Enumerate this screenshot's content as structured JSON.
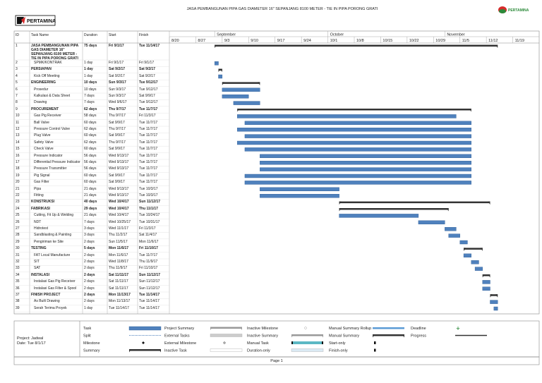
{
  "header": {
    "logo": "PERTAMINA",
    "title": "JASA PEMBANGUNAN PIPA GAS DIAMETER 16\" SEPANJANG 8100 METER - TIE IN PIPA PORONG GRATI",
    "logo_right": "PERTAMINA"
  },
  "chart_data": {
    "type": "gantt",
    "columns": [
      "ID",
      "Task Name",
      "Duration",
      "Start",
      "Finish"
    ],
    "months": [
      "September",
      "October",
      "November"
    ],
    "weeks": [
      "8/20",
      "8/27",
      "9/3",
      "9/10",
      "9/17",
      "9/24",
      "10/1",
      "10/8",
      "10/15",
      "10/22",
      "10/29",
      "11/5",
      "11/12",
      "11/19"
    ],
    "tasks": [
      {
        "id": 1,
        "name": "JASA PEMBANGUNAN PIPA GAS DIAMETER 16\" SEPANJANG 8100 METER - TIE IN PIPA PORONG GRATI",
        "duration": "75 days",
        "start": "Fri 9/1/17",
        "finish": "Tue 11/14/17",
        "summary": true
      },
      {
        "id": 2,
        "name": "SPMK/KONTRAK",
        "duration": "1 day",
        "start": "Fri 9/1/17",
        "finish": "Fri 9/1/17",
        "summary": false
      },
      {
        "id": 3,
        "name": "PERSIAPAN",
        "duration": "1 day",
        "start": "Sat 9/2/17",
        "finish": "Sat 9/2/17",
        "summary": true
      },
      {
        "id": 4,
        "name": "Kick Off Meeting",
        "duration": "1 day",
        "start": "Sat 9/2/17",
        "finish": "Sat 9/2/17",
        "summary": false
      },
      {
        "id": 5,
        "name": "ENGINEERING",
        "duration": "10 days",
        "start": "Sun 9/3/17",
        "finish": "Tue 9/12/17",
        "summary": true
      },
      {
        "id": 6,
        "name": "Prosedur",
        "duration": "10 days",
        "start": "Sun 9/3/17",
        "finish": "Tue 9/12/17",
        "summary": false
      },
      {
        "id": 7,
        "name": "Kalkulasi & Data Sheet",
        "duration": "7 days",
        "start": "Sun 9/3/17",
        "finish": "Sat 9/9/17",
        "summary": false
      },
      {
        "id": 8,
        "name": "Drawing",
        "duration": "7 days",
        "start": "Wed 9/6/17",
        "finish": "Tue 9/12/17",
        "summary": false
      },
      {
        "id": 9,
        "name": "PROCUREMENT",
        "duration": "62 days",
        "start": "Thu 9/7/17",
        "finish": "Tue 11/7/17",
        "summary": true
      },
      {
        "id": 10,
        "name": "Gas Pig Receiver",
        "duration": "58 days",
        "start": "Thu 9/7/17",
        "finish": "Fri 11/3/17",
        "summary": false
      },
      {
        "id": 11,
        "name": "Ball Valve",
        "duration": "60 days",
        "start": "Sat 9/9/17",
        "finish": "Tue 11/7/17",
        "summary": false
      },
      {
        "id": 12,
        "name": "Pressure Control Valve",
        "duration": "62 days",
        "start": "Thu 9/7/17",
        "finish": "Tue 11/7/17",
        "summary": false
      },
      {
        "id": 13,
        "name": "Plug Valve",
        "duration": "60 days",
        "start": "Sat 9/9/17",
        "finish": "Tue 11/7/17",
        "summary": false
      },
      {
        "id": 14,
        "name": "Safety Valve",
        "duration": "62 days",
        "start": "Thu 9/7/17",
        "finish": "Tue 11/7/17",
        "summary": false
      },
      {
        "id": 15,
        "name": "Check Valve",
        "duration": "60 days",
        "start": "Sat 9/9/17",
        "finish": "Tue 11/7/17",
        "summary": false
      },
      {
        "id": 16,
        "name": "Pressure Indicator",
        "duration": "56 days",
        "start": "Wed 9/13/17",
        "finish": "Tue 11/7/17",
        "summary": false
      },
      {
        "id": 17,
        "name": "Differential Pressure Indicator",
        "duration": "56 days",
        "start": "Wed 9/13/17",
        "finish": "Tue 11/7/17",
        "summary": false
      },
      {
        "id": 18,
        "name": "Pressure Transmitter",
        "duration": "56 days",
        "start": "Wed 9/13/17",
        "finish": "Tue 11/7/17",
        "summary": false
      },
      {
        "id": 19,
        "name": "Pig Signal",
        "duration": "60 days",
        "start": "Sat 9/9/17",
        "finish": "Tue 11/7/17",
        "summary": false
      },
      {
        "id": 20,
        "name": "Gas Filter",
        "duration": "60 days",
        "start": "Sat 9/9/17",
        "finish": "Tue 11/7/17",
        "summary": false
      },
      {
        "id": 21,
        "name": "Pipa",
        "duration": "21 days",
        "start": "Wed 9/13/17",
        "finish": "Tue 10/3/17",
        "summary": false
      },
      {
        "id": 22,
        "name": "Fitting",
        "duration": "21 days",
        "start": "Wed 9/13/17",
        "finish": "Tue 10/3/17",
        "summary": false
      },
      {
        "id": 23,
        "name": "KONSTRUKSI",
        "duration": "40 days",
        "start": "Wed 10/4/17",
        "finish": "Sun 11/12/17",
        "summary": true
      },
      {
        "id": 24,
        "name": "FABRIKASI",
        "duration": "29 days",
        "start": "Wed 10/4/17",
        "finish": "Thu 11/1/17",
        "summary": true
      },
      {
        "id": 25,
        "name": "Cutting, Fit Up & Welding",
        "duration": "21 days",
        "start": "Wed 10/4/17",
        "finish": "Tue 10/24/17",
        "summary": false
      },
      {
        "id": 26,
        "name": "NDT",
        "duration": "7 days",
        "start": "Wed 10/25/17",
        "finish": "Tue 10/31/17",
        "summary": false
      },
      {
        "id": 27,
        "name": "Hidrotest",
        "duration": "3 days",
        "start": "Wed 11/1/17",
        "finish": "Fri 11/3/17",
        "summary": false
      },
      {
        "id": 28,
        "name": "Sandblasting & Painting",
        "duration": "3 days",
        "start": "Thu 11/2/17",
        "finish": "Sat 11/4/17",
        "summary": false
      },
      {
        "id": 29,
        "name": "Pengiriman ke Site",
        "duration": "2 days",
        "start": "Sun 11/5/17",
        "finish": "Mon 11/6/17",
        "summary": false
      },
      {
        "id": 30,
        "name": "TESTING",
        "duration": "5 days",
        "start": "Mon 11/6/17",
        "finish": "Fri 11/10/17",
        "summary": true
      },
      {
        "id": 31,
        "name": "FAT Local Manufacture",
        "duration": "2 days",
        "start": "Mon 11/6/17",
        "finish": "Tue 11/7/17",
        "summary": false
      },
      {
        "id": 32,
        "name": "SIT",
        "duration": "2 days",
        "start": "Wed 11/8/17",
        "finish": "Thu 11/9/17",
        "summary": false
      },
      {
        "id": 33,
        "name": "SAT",
        "duration": "2 days",
        "start": "Thu 11/9/17",
        "finish": "Fri 11/10/17",
        "summary": false
      },
      {
        "id": 34,
        "name": "INSTALASI",
        "duration": "2 days",
        "start": "Sat 11/11/17",
        "finish": "Sun 11/12/17",
        "summary": true
      },
      {
        "id": 35,
        "name": "Instalasi Gas Pig Receiver",
        "duration": "2 days",
        "start": "Sat 11/11/17",
        "finish": "Sun 11/12/17",
        "summary": false
      },
      {
        "id": 36,
        "name": "Instalasi Gas Filter & Spool",
        "duration": "2 days",
        "start": "Sat 11/11/17",
        "finish": "Sun 11/12/17",
        "summary": false
      },
      {
        "id": 37,
        "name": "FINISH PROJECT",
        "duration": "2 days",
        "start": "Mon 11/13/17",
        "finish": "Tue 11/14/17",
        "summary": true
      },
      {
        "id": 38,
        "name": "As Built Drawing",
        "duration": "2 days",
        "start": "Mon 11/13/17",
        "finish": "Tue 11/14/17",
        "summary": false
      },
      {
        "id": 39,
        "name": "Serah Terima Proyek",
        "duration": "1 day",
        "start": "Tue 11/14/17",
        "finish": "Tue 11/14/17",
        "summary": false
      }
    ]
  },
  "legend": {
    "project": "Project: Jadwal",
    "date": "Date: Tue 8/1/17",
    "items": [
      "Task",
      "Split",
      "Milestone",
      "Summary",
      "Project Summary",
      "External Tasks",
      "External Milestone",
      "Inactive Task",
      "Inactive Milestone",
      "Inactive Summary",
      "Manual Task",
      "Duration-only",
      "Manual Summary Rollup",
      "Manual Summary",
      "Start-only",
      "Finish-only",
      "Deadline",
      "Progress"
    ]
  },
  "footer": {
    "page": "Page 1"
  }
}
